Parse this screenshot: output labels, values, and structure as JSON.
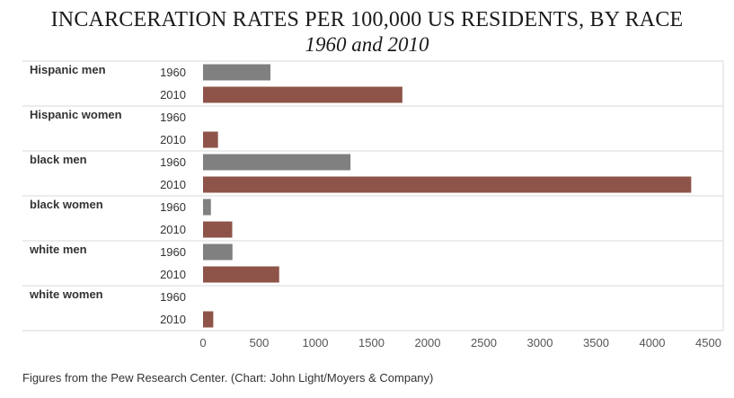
{
  "title": "INCARCERATION RATES PER 100,000 US RESIDENTS, BY RACE",
  "subtitle": "1960 and 2010",
  "source": "Figures from the Pew Research Center. (Chart: John Light/Moyers & Company)",
  "chart_data": {
    "type": "bar",
    "orientation": "horizontal",
    "title": "INCARCERATION RATES PER 100,000 US RESIDENTS, BY RACE",
    "subtitle": "1960 and 2010",
    "categories": [
      "Hispanic men",
      "Hispanic women",
      "black men",
      "black women",
      "white men",
      "white women"
    ],
    "series": [
      {
        "name": "1960",
        "color": "#808080",
        "values": [
          600,
          0,
          1313,
          70,
          262,
          0
        ]
      },
      {
        "name": "2010",
        "color": "#8e5449",
        "values": [
          1775,
          133,
          4347,
          260,
          678,
          91
        ]
      }
    ],
    "x_ticks": [
      0,
      500,
      1000,
      1500,
      2000,
      2500,
      3000,
      3500,
      4000,
      4500
    ],
    "xlim": [
      0,
      4500
    ],
    "grid": "horizontal separators between categories"
  }
}
